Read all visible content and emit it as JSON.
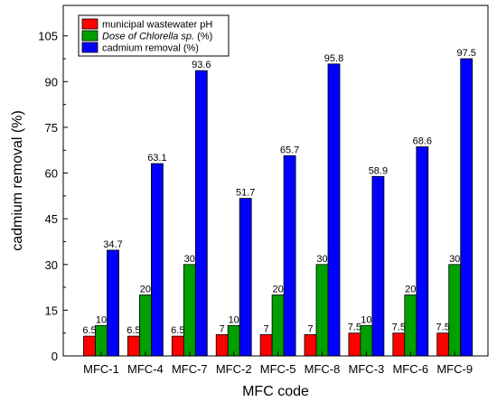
{
  "chart_data": {
    "type": "bar",
    "categories": [
      "MFC-1",
      "MFC-4",
      "MFC-7",
      "MFC-2",
      "MFC-5",
      "MFC-8",
      "MFC-3",
      "MFC-6",
      "MFC-9"
    ],
    "series": [
      {
        "name": "municipal wastewater pH",
        "italic_part": "",
        "suffix": "",
        "color": "#ff0000",
        "values": [
          6.5,
          6.5,
          6.5,
          7,
          7,
          7,
          7.5,
          7.5,
          7.5
        ]
      },
      {
        "name": "Dose of Chlorella sp. (%)",
        "italic_part": "Dose of Chlorella sp.",
        "suffix": " (%)",
        "color": "#00a000",
        "values": [
          10,
          20,
          30,
          10,
          20,
          30,
          10,
          20,
          30
        ]
      },
      {
        "name": "cadmium removal (%)",
        "italic_part": "",
        "suffix": "",
        "color": "#0000ff",
        "values": [
          34.7,
          63.1,
          93.6,
          51.7,
          65.7,
          95.8,
          58.9,
          68.6,
          97.5
        ]
      }
    ],
    "data_labels": [
      [
        "6.5",
        "6.5",
        "6.5",
        "7",
        "7",
        "7",
        "7.5",
        "7.5",
        "7.5"
      ],
      [
        "10",
        "20",
        "30",
        "10",
        "20",
        "30",
        "10",
        "20",
        "30"
      ],
      [
        "34.7",
        "63.1",
        "93.6",
        "51.7",
        "65.7",
        "95.8",
        "58.9",
        "68.6",
        "97.5"
      ]
    ],
    "xlabel": "MFC code",
    "ylabel": "cadmium removal (%)",
    "ylim": [
      0,
      115
    ],
    "yticks": [
      "0",
      "15",
      "30",
      "45",
      "60",
      "75",
      "90",
      "105"
    ],
    "ytick_values": [
      0,
      15,
      30,
      45,
      60,
      75,
      90,
      105
    ],
    "grid": false,
    "legend_position": "top-left"
  }
}
